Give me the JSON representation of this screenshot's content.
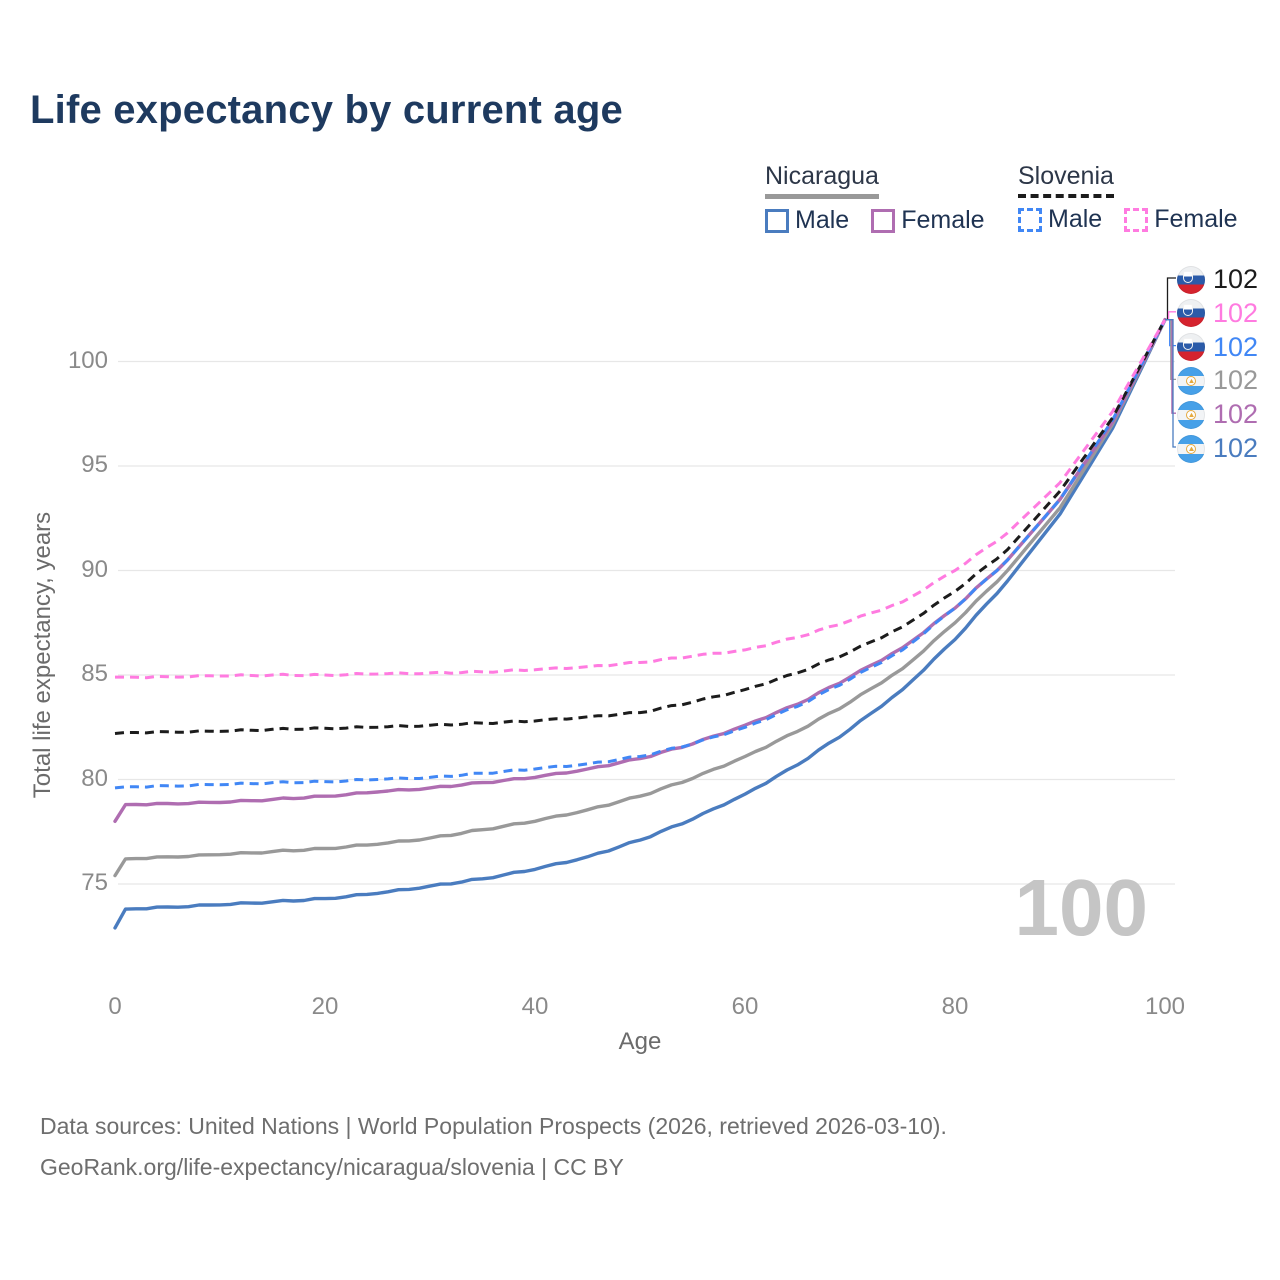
{
  "title": "Life expectancy by current age",
  "legend": {
    "countries": [
      {
        "name": "Nicaragua",
        "line_color": "#999999",
        "line_style": "solid",
        "items": [
          {
            "label": "Male",
            "color": "#4a7cbf",
            "style": "solid"
          },
          {
            "label": "Female",
            "color": "#af6db1",
            "style": "solid"
          }
        ]
      },
      {
        "name": "Slovenia",
        "line_color": "#1c1c1c",
        "line_style": "dashed",
        "items": [
          {
            "label": "Male",
            "color": "#4187f5",
            "style": "dashed"
          },
          {
            "label": "Female",
            "color": "#ff7be0",
            "style": "dashed"
          }
        ]
      }
    ]
  },
  "chart_data": {
    "type": "line",
    "title": "Life expectancy by current age",
    "xlabel": "Age",
    "ylabel": "Total life expectancy, years",
    "xlim": [
      0,
      100
    ],
    "ylim": [
      72.5,
      103
    ],
    "x_ticks": [
      0,
      20,
      40,
      60,
      80,
      100
    ],
    "y_ticks": [
      75,
      80,
      85,
      90,
      95,
      100
    ],
    "grid": true,
    "legend_position": "top-right",
    "x": [
      0,
      1,
      5,
      10,
      15,
      20,
      25,
      30,
      35,
      40,
      45,
      50,
      55,
      60,
      65,
      70,
      75,
      80,
      85,
      90,
      95,
      100
    ],
    "series": [
      {
        "name": "Nicaragua Male",
        "country": "Nicaragua",
        "sex": "Male",
        "color": "#4a7cbf",
        "dash": false,
        "values": [
          72.9,
          73.8,
          73.9,
          74.0,
          74.15,
          74.3,
          74.55,
          74.9,
          75.25,
          75.7,
          76.3,
          77.1,
          78.1,
          79.3,
          80.7,
          82.4,
          84.3,
          86.7,
          89.5,
          92.7,
          96.8,
          102
        ]
      },
      {
        "name": "Nicaragua Both sexes",
        "country": "Nicaragua",
        "sex": "Both",
        "color": "#999999",
        "dash": false,
        "values": [
          75.4,
          76.2,
          76.3,
          76.4,
          76.55,
          76.7,
          76.9,
          77.2,
          77.6,
          78.0,
          78.55,
          79.2,
          80.05,
          81.1,
          82.3,
          83.7,
          85.3,
          87.5,
          90.0,
          93.0,
          97.0,
          102
        ]
      },
      {
        "name": "Nicaragua Female",
        "country": "Nicaragua",
        "sex": "Female",
        "color": "#af6db1",
        "dash": false,
        "values": [
          78.0,
          78.8,
          78.85,
          78.9,
          79.05,
          79.2,
          79.4,
          79.6,
          79.85,
          80.1,
          80.5,
          81.0,
          81.7,
          82.6,
          83.6,
          84.9,
          86.3,
          88.2,
          90.5,
          93.4,
          97.1,
          102
        ]
      },
      {
        "name": "Slovenia Male",
        "country": "Slovenia",
        "sex": "Male",
        "color": "#4187f5",
        "dash": true,
        "values": [
          79.6,
          79.65,
          79.7,
          79.75,
          79.85,
          79.9,
          80.0,
          80.1,
          80.3,
          80.5,
          80.75,
          81.1,
          81.7,
          82.5,
          83.5,
          84.8,
          86.2,
          88.2,
          90.5,
          93.4,
          97.2,
          102
        ]
      },
      {
        "name": "Slovenia Both sexes",
        "country": "Slovenia",
        "sex": "Both",
        "color": "#1c1c1c",
        "dash": true,
        "values": [
          82.2,
          82.25,
          82.28,
          82.3,
          82.4,
          82.45,
          82.5,
          82.6,
          82.7,
          82.8,
          83.0,
          83.2,
          83.7,
          84.3,
          85.1,
          86.1,
          87.3,
          89.0,
          91.0,
          93.8,
          97.3,
          102
        ]
      },
      {
        "name": "Slovenia Female",
        "country": "Slovenia",
        "sex": "Female",
        "color": "#ff7be0",
        "dash": true,
        "values": [
          84.9,
          84.9,
          84.92,
          84.95,
          85.0,
          85.0,
          85.05,
          85.1,
          85.15,
          85.25,
          85.4,
          85.6,
          85.9,
          86.2,
          86.8,
          87.6,
          88.5,
          90.0,
          91.8,
          94.2,
          97.6,
          102
        ]
      }
    ],
    "end_labels": [
      {
        "flag": "slovenia",
        "country": "Slovenia",
        "value": "102",
        "color": "#1c1c1c"
      },
      {
        "flag": "slovenia",
        "country": "Slovenia",
        "value": "102",
        "color": "#ff7be0"
      },
      {
        "flag": "slovenia",
        "country": "Slovenia",
        "value": "102",
        "color": "#4187f5"
      },
      {
        "flag": "nicaragua",
        "country": "Nicaragua",
        "value": "102",
        "color": "#999999"
      },
      {
        "flag": "nicaragua",
        "country": "Nicaragua",
        "value": "102",
        "color": "#af6db1"
      },
      {
        "flag": "nicaragua",
        "country": "Nicaragua",
        "value": "102",
        "color": "#4a7cbf"
      }
    ]
  },
  "current_age_label": "100",
  "footer": {
    "line1": "Data sources: United Nations | World Population Prospects (2026, retrieved 2026-03-10).",
    "line2": "GeoRank.org/life-expectancy/nicaragua/slovenia | CC BY"
  }
}
